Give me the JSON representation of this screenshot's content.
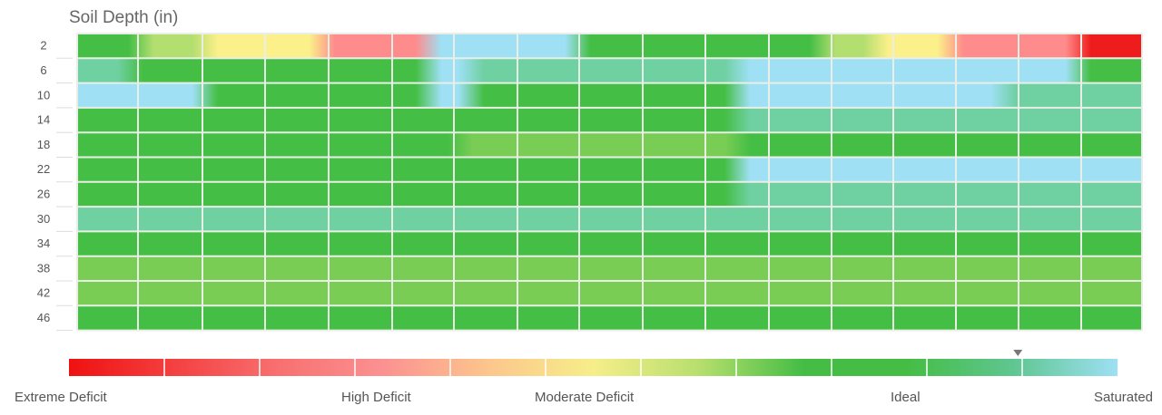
{
  "chart_data": {
    "type": "heatmap",
    "title": "Soil Depth (in)",
    "ylabel": "Soil Depth (in)",
    "depths": [
      "2",
      "6",
      "10",
      "14",
      "18",
      "22",
      "26",
      "30",
      "34",
      "38",
      "42",
      "46"
    ],
    "grid": true,
    "scale": {
      "steps": [
        "Extreme Deficit",
        "Extreme Deficit",
        "High Deficit",
        "High Deficit",
        "High Deficit",
        "Moderate Deficit",
        "Moderate Deficit",
        "Ideal",
        "Ideal",
        "Ideal",
        "Saturated"
      ],
      "labels": [
        "Extreme Deficit",
        "High Deficit",
        "Moderate Deficit",
        "Ideal",
        "Saturated"
      ],
      "current_marker": 0.905
    },
    "rows": [
      {
        "depth": "2",
        "segments": [
          {
            "from": 0.0,
            "to": 0.06,
            "state": "ideal"
          },
          {
            "from": 0.06,
            "to": 0.12,
            "state": "ideal_to_moderate"
          },
          {
            "from": 0.12,
            "to": 0.23,
            "state": "moderate"
          },
          {
            "from": 0.23,
            "to": 0.33,
            "state": "high"
          },
          {
            "from": 0.33,
            "to": 0.47,
            "state": "saturated"
          },
          {
            "from": 0.47,
            "to": 0.7,
            "state": "ideal"
          },
          {
            "from": 0.7,
            "to": 0.75,
            "state": "ideal_to_moderate"
          },
          {
            "from": 0.75,
            "to": 0.82,
            "state": "moderate"
          },
          {
            "from": 0.82,
            "to": 0.94,
            "state": "high"
          },
          {
            "from": 0.94,
            "to": 1.0,
            "state": "extreme"
          }
        ]
      },
      {
        "depth": "6",
        "segments": [
          {
            "from": 0.0,
            "to": 0.05,
            "state": "wet"
          },
          {
            "from": 0.05,
            "to": 0.33,
            "state": "ideal"
          },
          {
            "from": 0.33,
            "to": 0.37,
            "state": "saturated"
          },
          {
            "from": 0.37,
            "to": 0.62,
            "state": "wet"
          },
          {
            "from": 0.62,
            "to": 0.94,
            "state": "saturated"
          },
          {
            "from": 0.94,
            "to": 1.0,
            "state": "ideal"
          }
        ]
      },
      {
        "depth": "10",
        "segments": [
          {
            "from": 0.0,
            "to": 0.12,
            "state": "saturated"
          },
          {
            "from": 0.12,
            "to": 0.33,
            "state": "ideal"
          },
          {
            "from": 0.33,
            "to": 0.37,
            "state": "saturated"
          },
          {
            "from": 0.37,
            "to": 0.62,
            "state": "ideal"
          },
          {
            "from": 0.62,
            "to": 0.87,
            "state": "saturated"
          },
          {
            "from": 0.87,
            "to": 1.0,
            "state": "wet"
          }
        ]
      },
      {
        "depth": "14",
        "segments": [
          {
            "from": 0.0,
            "to": 0.62,
            "state": "ideal"
          },
          {
            "from": 0.62,
            "to": 1.0,
            "state": "wet"
          }
        ]
      },
      {
        "depth": "18",
        "segments": [
          {
            "from": 0.0,
            "to": 0.36,
            "state": "ideal"
          },
          {
            "from": 0.36,
            "to": 0.62,
            "state": "light"
          },
          {
            "from": 0.62,
            "to": 1.0,
            "state": "ideal"
          }
        ]
      },
      {
        "depth": "22",
        "segments": [
          {
            "from": 0.0,
            "to": 0.62,
            "state": "ideal"
          },
          {
            "from": 0.62,
            "to": 1.0,
            "state": "saturated"
          }
        ]
      },
      {
        "depth": "26",
        "segments": [
          {
            "from": 0.0,
            "to": 0.62,
            "state": "ideal"
          },
          {
            "from": 0.62,
            "to": 1.0,
            "state": "wet"
          }
        ]
      },
      {
        "depth": "30",
        "segments": [
          {
            "from": 0.0,
            "to": 0.62,
            "state": "wet"
          },
          {
            "from": 0.62,
            "to": 1.0,
            "state": "wet"
          }
        ]
      },
      {
        "depth": "34",
        "segments": [
          {
            "from": 0.0,
            "to": 1.0,
            "state": "ideal"
          }
        ]
      },
      {
        "depth": "38",
        "segments": [
          {
            "from": 0.0,
            "to": 1.0,
            "state": "light"
          }
        ]
      },
      {
        "depth": "42",
        "segments": [
          {
            "from": 0.0,
            "to": 1.0,
            "state": "light"
          }
        ]
      },
      {
        "depth": "46",
        "segments": [
          {
            "from": 0.0,
            "to": 1.0,
            "state": "ideal"
          }
        ]
      }
    ],
    "colors": {
      "extreme": "#ee1c1c",
      "high": "#ff8c8c",
      "moderate": "#fbf089",
      "ideal_to_moderate": "#b3de70",
      "light": "#79cd55",
      "ideal": "#45be45",
      "wet": "#6fd0a2",
      "saturated": "#9fe0f5",
      "grid": "#e9efe6",
      "scale": [
        "#ef1111",
        "#f44040",
        "#f87070",
        "#fb9191",
        "#fcc68c",
        "#f6ee8a",
        "#b8df6e",
        "#45bd45",
        "#45bd45",
        "#5fc690",
        "#9ee0f4"
      ]
    }
  }
}
